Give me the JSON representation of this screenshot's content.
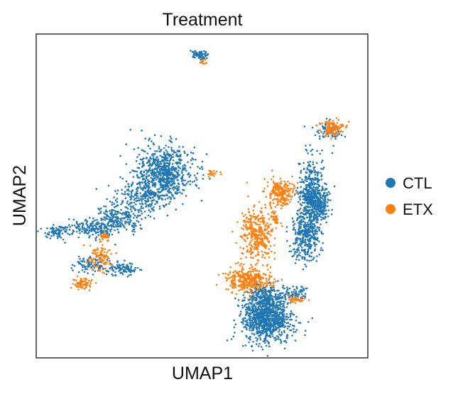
{
  "chart_data": {
    "type": "scatter",
    "title": "Treatment",
    "xlabel": "UMAP1",
    "ylabel": "UMAP2",
    "xlim": [
      0,
      100
    ],
    "ylim": [
      0,
      100
    ],
    "ticks": false,
    "grid": false,
    "legend_position": "right",
    "series": [
      {
        "name": "CTL",
        "color": "#1f77b4",
        "clusters": [
          {
            "cx": 49,
            "cy": 93.5,
            "rx": 2.5,
            "ry": 1.6,
            "n": 70
          },
          {
            "cx": 88,
            "cy": 70,
            "rx": 3.5,
            "ry": 2.5,
            "n": 70
          },
          {
            "cx": 39,
            "cy": 57.5,
            "rx": 9,
            "ry": 8,
            "n": 700
          },
          {
            "cx": 32,
            "cy": 50,
            "rx": 8,
            "ry": 5,
            "n": 250
          },
          {
            "cx": 25,
            "cy": 43,
            "rx": 7,
            "ry": 4,
            "n": 220
          },
          {
            "cx": 17,
            "cy": 40,
            "rx": 7,
            "ry": 3,
            "n": 160
          },
          {
            "cx": 6.5,
            "cy": 39,
            "rx": 4.5,
            "ry": 2,
            "n": 80
          },
          {
            "cx": 16,
            "cy": 29,
            "rx": 5,
            "ry": 2.5,
            "n": 90
          },
          {
            "cx": 26,
            "cy": 27.5,
            "rx": 5,
            "ry": 2,
            "n": 100
          },
          {
            "cx": 83,
            "cy": 50,
            "rx": 4,
            "ry": 13,
            "n": 500
          },
          {
            "cx": 81,
            "cy": 37,
            "rx": 4.5,
            "ry": 7,
            "n": 280
          },
          {
            "cx": 85,
            "cy": 47.5,
            "rx": 3.5,
            "ry": 5,
            "n": 180
          },
          {
            "cx": 69.5,
            "cy": 12,
            "rx": 7.5,
            "ry": 7,
            "n": 900
          },
          {
            "cx": 69,
            "cy": 19,
            "rx": 5,
            "ry": 4,
            "n": 250
          },
          {
            "cx": 78,
            "cy": 20,
            "rx": 3.5,
            "ry": 2,
            "n": 70
          }
        ]
      },
      {
        "name": "ETX",
        "color": "#ff7f0e",
        "clusters": [
          {
            "cx": 50.5,
            "cy": 91.5,
            "rx": 1.2,
            "ry": 0.8,
            "n": 14
          },
          {
            "cx": 89.5,
            "cy": 71,
            "rx": 3.6,
            "ry": 2.4,
            "n": 110
          },
          {
            "cx": 73.5,
            "cy": 51,
            "rx": 4.5,
            "ry": 4.5,
            "n": 200
          },
          {
            "cx": 66.5,
            "cy": 38,
            "rx": 5,
            "ry": 8,
            "n": 340
          },
          {
            "cx": 64,
            "cy": 24,
            "rx": 7,
            "ry": 4,
            "n": 330
          },
          {
            "cx": 19.5,
            "cy": 31,
            "rx": 3.5,
            "ry": 4,
            "n": 100
          },
          {
            "cx": 14,
            "cy": 23,
            "rx": 3,
            "ry": 2,
            "n": 70
          },
          {
            "cx": 20.5,
            "cy": 37.5,
            "rx": 1.5,
            "ry": 1.2,
            "n": 35
          },
          {
            "cx": 78.5,
            "cy": 18,
            "rx": 2.5,
            "ry": 1,
            "n": 35
          },
          {
            "cx": 53,
            "cy": 57,
            "rx": 2.2,
            "ry": 1,
            "n": 18
          },
          {
            "cx": 72,
            "cy": 43,
            "rx": 1.5,
            "ry": 2,
            "n": 30
          }
        ]
      }
    ]
  }
}
